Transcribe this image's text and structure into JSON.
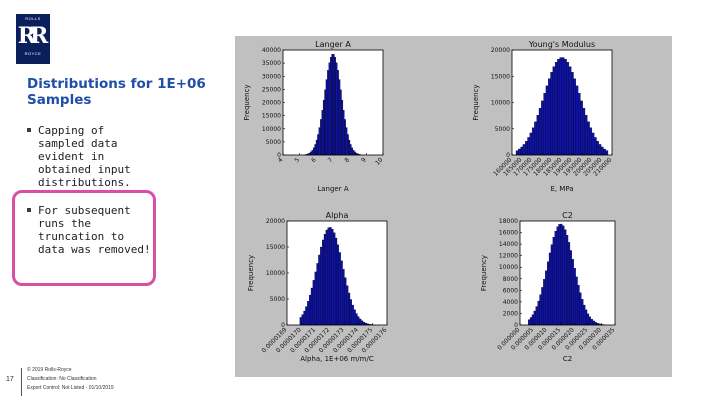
{
  "logo": {
    "top": "ROLLS",
    "monogram": "RR",
    "bottom": "ROYCE"
  },
  "slide": {
    "title": "Distributions for 1E+06 Samples",
    "bullets": [
      "Capping of sampled data evident in obtained input distributions.",
      "For subsequent runs the truncation to data was removed!"
    ],
    "page_number": "17",
    "footer": [
      "© 2019 Rolls-Royce",
      "Classification: No Classification",
      "Export Control: Not Listed - 01/10/2019"
    ]
  },
  "colors": {
    "title": "#1f4fa8",
    "highlight_border": "#d94fa6",
    "figure_bg": "#c0c0c0",
    "bar_fill": "#0e12a8"
  },
  "chart_data": [
    {
      "type": "bar",
      "title": "Langer A",
      "xlabel": "Langer A",
      "ylabel": "Frequency",
      "x_ticks": [
        "4",
        "5",
        "6",
        "7",
        "8",
        "9",
        "10"
      ],
      "y_ticks": [
        "0",
        "5000",
        "10000",
        "15000",
        "20000",
        "25000",
        "30000",
        "35000",
        "40000"
      ],
      "xlim": [
        4,
        10
      ],
      "ylim": [
        0,
        40000
      ],
      "bins": {
        "range": [
          5.3,
          8.7
        ],
        "peak_x": 7.0,
        "peak_y": 38500,
        "spread": 0.5
      }
    },
    {
      "type": "bar",
      "title": "Young's Modulus",
      "xlabel": "E, MPa",
      "ylabel": "Frequency",
      "x_ticks": [
        "160000",
        "165000",
        "170000",
        "175000",
        "180000",
        "185000",
        "190000",
        "195000",
        "200000",
        "205000",
        "210000"
      ],
      "y_ticks": [
        "0",
        "5000",
        "10000",
        "15000",
        "20000"
      ],
      "xlim": [
        160000,
        210000
      ],
      "ylim": [
        0,
        20000
      ],
      "bins": {
        "range": [
          162000,
          208000
        ],
        "peak_x": 185000,
        "peak_y": 18600,
        "spread": 9000
      }
    },
    {
      "type": "bar",
      "title": "Alpha",
      "xlabel": "Alpha, 1E+06 m/m/C",
      "ylabel": "Frequency",
      "x_ticks": [
        "0.0000169",
        "0.0000170",
        "0.0000171",
        "0.0000172",
        "0.0000173",
        "0.0000174",
        "0.0000175",
        "0.0000176"
      ],
      "y_ticks": [
        "0",
        "5000",
        "10000",
        "15000",
        "20000"
      ],
      "xlim": [
        1.69e-05,
        1.76e-05
      ],
      "ylim": [
        0,
        20000
      ],
      "bins": {
        "range": [
          1.699e-05,
          1.751e-05
        ],
        "peak_x": 1.72e-05,
        "peak_y": 18800,
        "spread": 9e-08
      }
    },
    {
      "type": "bar",
      "title": "C2",
      "xlabel": "C2",
      "ylabel": "Frequency",
      "x_ticks": [
        "0.000000",
        "0.000005",
        "0.000010",
        "0.000015",
        "0.000020",
        "0.000025",
        "0.000030",
        "0.000035"
      ],
      "y_ticks": [
        "0",
        "2000",
        "4000",
        "6000",
        "8000",
        "10000",
        "12000",
        "14000",
        "16000",
        "18000"
      ],
      "xlim": [
        0,
        3.5e-05
      ],
      "ylim": [
        0,
        18000
      ],
      "bins": {
        "range": [
          3e-06,
          3.1e-05
        ],
        "peak_x": 1.5e-05,
        "peak_y": 17500,
        "spread": 4.8e-06
      }
    }
  ]
}
